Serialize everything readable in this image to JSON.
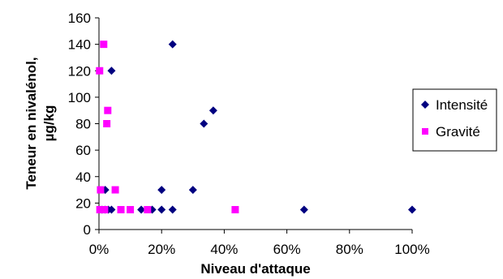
{
  "chart_data": {
    "type": "scatter",
    "title": "",
    "xlabel": "Niveau d'attaque",
    "ylabel_lines": [
      "Teneur en nivalénol,",
      "µg/kg"
    ],
    "xlim": [
      0,
      1
    ],
    "ylim": [
      0,
      160
    ],
    "x_ticks": [
      0,
      0.2,
      0.4,
      0.6,
      0.8,
      1.0
    ],
    "x_tick_labels": [
      "0%",
      "20%",
      "40%",
      "60%",
      "80%",
      "100%"
    ],
    "y_ticks": [
      0,
      20,
      40,
      60,
      80,
      100,
      120,
      140,
      160
    ],
    "y_tick_labels": [
      "0",
      "20",
      "40",
      "60",
      "80",
      "100",
      "120",
      "140",
      "160"
    ],
    "grid": false,
    "legend_position": "right",
    "series": [
      {
        "name": "Intensité",
        "marker": "diamond",
        "color": "#000080",
        "points": [
          {
            "x": 0.235,
            "y": 140
          },
          {
            "x": 0.04,
            "y": 120
          },
          {
            "x": 0.365,
            "y": 90
          },
          {
            "x": 0.335,
            "y": 80
          },
          {
            "x": 0.2,
            "y": 30
          },
          {
            "x": 0.3,
            "y": 30
          },
          {
            "x": 0.02,
            "y": 30
          },
          {
            "x": 0.01,
            "y": 15
          },
          {
            "x": 0.02,
            "y": 15
          },
          {
            "x": 0.03,
            "y": 15
          },
          {
            "x": 0.04,
            "y": 15
          },
          {
            "x": 0.135,
            "y": 15
          },
          {
            "x": 0.17,
            "y": 15
          },
          {
            "x": 0.2,
            "y": 15
          },
          {
            "x": 0.235,
            "y": 15
          },
          {
            "x": 0.655,
            "y": 15
          },
          {
            "x": 1.0,
            "y": 15
          }
        ]
      },
      {
        "name": "Gravité",
        "marker": "square",
        "color": "#FF00FF",
        "points": [
          {
            "x": 0.015,
            "y": 140
          },
          {
            "x": 0.002,
            "y": 120
          },
          {
            "x": 0.028,
            "y": 90
          },
          {
            "x": 0.025,
            "y": 80
          },
          {
            "x": 0.005,
            "y": 30
          },
          {
            "x": 0.052,
            "y": 30
          },
          {
            "x": 0.003,
            "y": 15
          },
          {
            "x": 0.01,
            "y": 15
          },
          {
            "x": 0.018,
            "y": 15
          },
          {
            "x": 0.07,
            "y": 15
          },
          {
            "x": 0.1,
            "y": 15
          },
          {
            "x": 0.155,
            "y": 15
          },
          {
            "x": 0.435,
            "y": 15
          }
        ]
      }
    ]
  }
}
